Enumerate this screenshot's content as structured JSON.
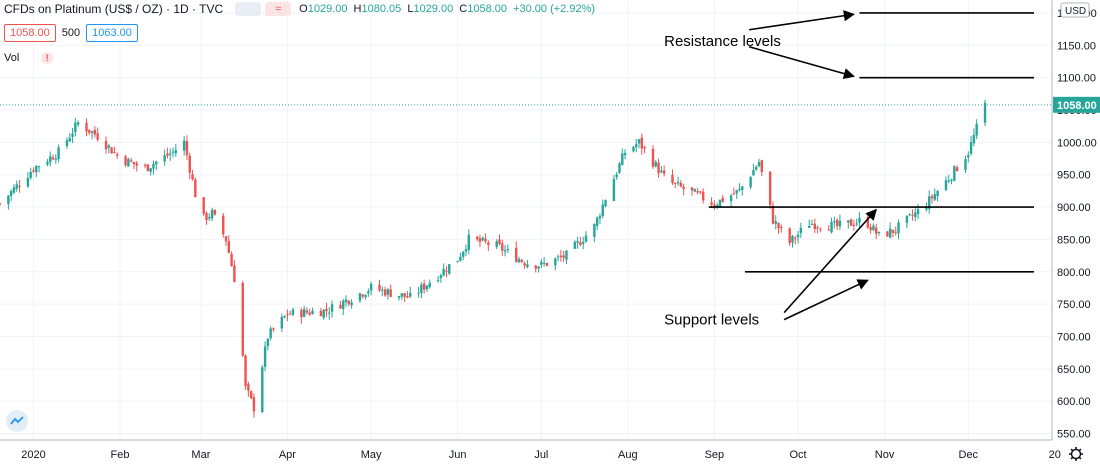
{
  "header": {
    "symbol": "CFDs on Platinum (US$ / OZ) · 1D · TVC",
    "open_label": "O",
    "open": "1029.00",
    "high_label": "H",
    "high": "1080.05",
    "low_label": "L",
    "low": "1029.00",
    "close_label": "C",
    "close": "1058.00",
    "change": "+30.00 (+2.92%)"
  },
  "trade": {
    "sell_price": "1058.00",
    "quantity": "500",
    "buy_price": "1063.00"
  },
  "volume_label": "Vol",
  "currency": "USD",
  "current_price_label": "1058.00",
  "colors": {
    "up": "#26a69a",
    "down": "#ef5350",
    "price_line": "#26a69a",
    "annotation": "#000000"
  },
  "chart_data": {
    "type": "candlestick",
    "title": "CFDs on Platinum (US$ / OZ) · 1D · TVC",
    "ylim": [
      540,
      1220
    ],
    "y_ticks": [
      550,
      600,
      650,
      700,
      750,
      800,
      850,
      900,
      950,
      1000,
      1050,
      1100,
      1150,
      1200
    ],
    "y_tick_labels": [
      "550.00",
      "600.00",
      "650.00",
      "700.00",
      "750.00",
      "800.00",
      "850.00",
      "900.00",
      "950.00",
      "1000.00",
      "1050.00",
      "1100.00",
      "1150.00",
      "1200.00"
    ],
    "x_range": [
      "2019-12-20",
      "2020-12-31"
    ],
    "x_ticks": [
      {
        "date": "2020-01-01",
        "label": "2020"
      },
      {
        "date": "2020-02-01",
        "label": "Feb"
      },
      {
        "date": "2020-03-01",
        "label": "Mar"
      },
      {
        "date": "2020-04-01",
        "label": "Apr"
      },
      {
        "date": "2020-05-01",
        "label": "May"
      },
      {
        "date": "2020-06-01",
        "label": "Jun"
      },
      {
        "date": "2020-07-01",
        "label": "Jul"
      },
      {
        "date": "2020-08-01",
        "label": "Aug"
      },
      {
        "date": "2020-09-01",
        "label": "Sep"
      },
      {
        "date": "2020-10-01",
        "label": "Oct"
      },
      {
        "date": "2020-11-01",
        "label": "Nov"
      },
      {
        "date": "2020-12-01",
        "label": "Dec"
      },
      {
        "date": "2021-01-01",
        "label": "20"
      }
    ],
    "price_path": [
      [
        "2019-12-20",
        905
      ],
      [
        "2020-01-01",
        960
      ],
      [
        "2020-01-10",
        985
      ],
      [
        "2020-01-17",
        1030
      ],
      [
        "2020-01-24",
        1010
      ],
      [
        "2020-02-01",
        975
      ],
      [
        "2020-02-10",
        960
      ],
      [
        "2020-02-20",
        985
      ],
      [
        "2020-02-24",
        1000
      ],
      [
        "2020-03-01",
        880
      ],
      [
        "2020-03-05",
        890
      ],
      [
        "2020-03-10",
        850
      ],
      [
        "2020-03-14",
        770
      ],
      [
        "2020-03-17",
        620
      ],
      [
        "2020-03-20",
        590
      ],
      [
        "2020-03-25",
        700
      ],
      [
        "2020-04-01",
        735
      ],
      [
        "2020-04-15",
        740
      ],
      [
        "2020-05-01",
        775
      ],
      [
        "2020-05-15",
        760
      ],
      [
        "2020-06-01",
        820
      ],
      [
        "2020-06-05",
        850
      ],
      [
        "2020-06-15",
        840
      ],
      [
        "2020-06-25",
        815
      ],
      [
        "2020-07-01",
        810
      ],
      [
        "2020-07-10",
        825
      ],
      [
        "2020-07-20",
        870
      ],
      [
        "2020-07-25",
        925
      ],
      [
        "2020-07-31",
        985
      ],
      [
        "2020-08-05",
        1000
      ],
      [
        "2020-08-15",
        940
      ],
      [
        "2020-08-25",
        920
      ],
      [
        "2020-09-01",
        905
      ],
      [
        "2020-09-10",
        925
      ],
      [
        "2020-09-17",
        970
      ],
      [
        "2020-09-22",
        880
      ],
      [
        "2020-09-28",
        845
      ],
      [
        "2020-10-05",
        875
      ],
      [
        "2020-10-15",
        870
      ],
      [
        "2020-10-25",
        880
      ],
      [
        "2020-10-30",
        855
      ],
      [
        "2020-11-05",
        865
      ],
      [
        "2020-11-15",
        900
      ],
      [
        "2020-11-25",
        950
      ],
      [
        "2020-12-01",
        985
      ],
      [
        "2020-12-07",
        1058
      ]
    ],
    "levels": [
      {
        "type": "resistance",
        "value": 1200,
        "x_start": "2020-10-23",
        "x_end": "2020-12-31"
      },
      {
        "type": "resistance",
        "value": 1100,
        "x_start": "2020-10-23",
        "x_end": "2020-12-31"
      },
      {
        "type": "support",
        "value": 900,
        "x_start": "2020-08-30",
        "x_end": "2020-12-31"
      },
      {
        "type": "support",
        "value": 800,
        "x_start": "2020-09-12",
        "x_end": "2020-12-31"
      }
    ],
    "annotations": [
      {
        "text": "Resistance levels",
        "date": "2020-08-14",
        "value": 1157
      },
      {
        "text": "Support levels",
        "date": "2020-08-14",
        "value": 726
      }
    ],
    "current_price": 1058
  }
}
